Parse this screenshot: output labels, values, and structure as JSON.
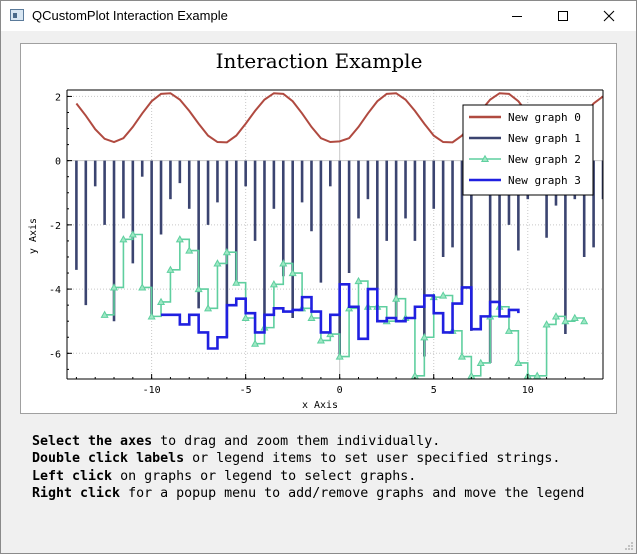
{
  "window": {
    "title": "QCustomPlot Interaction Example",
    "minimize_icon": "minimize-icon",
    "maximize_icon": "maximize-icon",
    "close_icon": "close-icon"
  },
  "plot": {
    "title": "Interaction Example",
    "xlabel": "x Axis",
    "ylabel": "y Axis",
    "xticks": [
      "-10",
      "-5",
      "0",
      "5",
      "10"
    ],
    "yticks": [
      "2",
      "0",
      "-2",
      "-4",
      "-6"
    ]
  },
  "chart_data": {
    "type": "line",
    "title": "Interaction Example",
    "xlabel": "x Axis",
    "ylabel": "y Axis",
    "xlim": [
      -14.5,
      14.0
    ],
    "ylim": [
      -6.8,
      2.2
    ],
    "grid": true,
    "legend_position": "top-right",
    "series": [
      {
        "name": "New graph 0",
        "style": "line",
        "color": "#b04a40",
        "x": [
          -14.0,
          -13.5,
          -13.0,
          -12.5,
          -12.0,
          -11.5,
          -11.0,
          -10.5,
          -10.0,
          -9.5,
          -9.0,
          -8.5,
          -8.0,
          -7.5,
          -7.0,
          -6.5,
          -6.0,
          -5.5,
          -5.0,
          -4.5,
          -4.0,
          -3.5,
          -3.0,
          -2.5,
          -2.0,
          -1.5,
          -1.0,
          -0.5,
          0.0,
          0.5,
          1.0,
          1.5,
          2.0,
          2.5,
          3.0,
          3.5,
          4.0,
          4.5,
          5.0,
          5.5,
          6.0,
          6.5,
          7.0,
          7.5,
          8.0,
          8.5,
          9.0,
          9.5,
          10.0,
          10.5,
          11.0,
          11.5,
          12.0,
          12.5,
          13.0,
          13.5,
          14.0
        ],
        "y": [
          1.78,
          1.4,
          0.98,
          0.68,
          0.58,
          0.7,
          1.05,
          1.47,
          1.85,
          2.08,
          2.1,
          1.9,
          1.55,
          1.15,
          0.78,
          0.58,
          0.57,
          0.78,
          1.15,
          1.55,
          1.9,
          2.1,
          2.08,
          1.85,
          1.47,
          1.05,
          0.7,
          0.58,
          0.6,
          0.7,
          1.05,
          1.47,
          1.85,
          2.08,
          2.1,
          1.9,
          1.55,
          1.15,
          0.78,
          0.58,
          0.57,
          0.78,
          1.15,
          1.55,
          1.9,
          2.1,
          2.08,
          1.85,
          1.47,
          1.05,
          0.7,
          0.58,
          0.68,
          0.98,
          1.4,
          1.78,
          2.0
        ]
      },
      {
        "name": "New graph 1",
        "style": "impulse",
        "color": "#3b4470",
        "x": [
          -14.0,
          -13.5,
          -13.0,
          -12.5,
          -12.0,
          -11.5,
          -11.0,
          -10.5,
          -10.0,
          -9.5,
          -9.0,
          -8.5,
          -8.0,
          -7.5,
          -7.0,
          -6.5,
          -6.0,
          -5.5,
          -5.0,
          -4.5,
          -4.0,
          -3.5,
          -3.0,
          -2.5,
          -2.0,
          -1.5,
          -1.0,
          -0.5,
          0.0,
          0.5,
          1.0,
          1.5,
          2.0,
          2.5,
          3.0,
          3.5,
          4.0,
          4.5,
          5.0,
          5.5,
          6.0,
          6.5,
          7.0,
          7.5,
          8.0,
          8.5,
          9.0,
          9.5,
          10.0,
          10.5,
          11.0,
          11.5,
          12.0,
          12.5,
          13.0,
          13.5,
          14.0
        ],
        "y": [
          -3.4,
          -4.5,
          -0.8,
          -2.0,
          -5.0,
          -1.8,
          -3.2,
          -0.5,
          -4.8,
          -2.3,
          -1.2,
          -0.7,
          -1.5,
          -4.6,
          -2.0,
          -1.3,
          -5.5,
          -3.8,
          -0.8,
          -2.5,
          -5.2,
          -1.5,
          -3.6,
          -4.9,
          -1.3,
          -2.2,
          -3.8,
          -0.8,
          -6.1,
          -3.5,
          -1.8,
          -1.2,
          -4.0,
          -2.5,
          -5.0,
          -1.8,
          -2.5,
          -6.1,
          -1.5,
          -3.0,
          -2.7,
          -4.4,
          -5.3,
          -1.0,
          -6.3,
          -4.5,
          -2.0,
          -2.8,
          -1.2,
          -0.9,
          -2.4,
          -1.4,
          -5.4,
          -1.2,
          -3.0,
          -2.7,
          -1.2
        ]
      },
      {
        "name": "New graph 2",
        "style": "step-left-triangles",
        "color": "#5fcf9f",
        "x": [
          -12.5,
          -12.0,
          -11.5,
          -11.0,
          -10.5,
          -10.0,
          -9.5,
          -9.0,
          -8.5,
          -8.0,
          -7.5,
          -7.0,
          -6.5,
          -6.0,
          -5.5,
          -5.0,
          -4.5,
          -4.0,
          -3.5,
          -3.0,
          -2.5,
          -2.0,
          -1.5,
          -1.0,
          -0.5,
          0.0,
          0.5,
          1.0,
          1.5,
          2.0,
          2.5,
          3.0,
          3.5,
          4.0,
          4.5,
          5.0,
          5.5,
          6.0,
          6.5,
          7.0,
          7.5,
          8.0,
          8.5,
          9.0,
          9.5,
          10.0,
          10.5,
          11.0,
          11.5,
          12.0,
          12.5,
          13.0
        ],
        "y": [
          -4.8,
          -3.95,
          -2.45,
          -2.3,
          -3.95,
          -4.85,
          -4.4,
          -3.4,
          -2.45,
          -2.8,
          -4.0,
          -4.6,
          -3.2,
          -2.85,
          -3.8,
          -4.9,
          -5.7,
          -5.2,
          -3.85,
          -3.2,
          -3.5,
          -4.6,
          -4.9,
          -5.6,
          -5.4,
          -6.1,
          -4.6,
          -3.75,
          -4.55,
          -4.55,
          -5.0,
          -4.3,
          -4.9,
          -6.7,
          -5.5,
          -4.25,
          -4.2,
          -5.3,
          -6.1,
          -6.7,
          -6.3,
          -4.85,
          -4.55,
          -5.3,
          -6.3,
          -6.7,
          -6.7,
          -5.1,
          -4.85,
          -5.0,
          -4.9,
          -5.0
        ]
      },
      {
        "name": "New graph 3",
        "style": "step-left",
        "color": "#2020e0",
        "x": [
          -9.5,
          -9.0,
          -8.5,
          -8.0,
          -7.5,
          -7.0,
          -6.5,
          -6.0,
          -5.5,
          -5.0,
          -4.5,
          -4.0,
          -3.5,
          -3.0,
          -2.5,
          -2.0,
          -1.5,
          -1.0,
          -0.5,
          0.0,
          0.5,
          1.0,
          1.5,
          2.0,
          2.5,
          3.0,
          3.5,
          4.0,
          4.5,
          5.0,
          5.5,
          6.0,
          6.5,
          7.0,
          7.5,
          8.0,
          8.5,
          9.0,
          9.5
        ],
        "y": [
          -4.8,
          -4.8,
          -5.1,
          -4.8,
          -5.35,
          -5.85,
          -5.5,
          -4.5,
          -4.3,
          -4.75,
          -5.35,
          -4.8,
          -4.6,
          -4.7,
          -4.65,
          -4.25,
          -4.7,
          -5.35,
          -4.8,
          -3.85,
          -4.55,
          -5.55,
          -4.0,
          -5.0,
          -4.9,
          -5.0,
          -4.9,
          -4.55,
          -4.2,
          -4.75,
          -5.35,
          -4.45,
          -3.95,
          -5.25,
          -4.85,
          -4.4,
          -4.85,
          -4.65,
          -4.75
        ]
      }
    ]
  },
  "instructions": {
    "line1_bold": "Select the axes",
    "line1_rest": " to drag and zoom them individually.",
    "line2_bold": "Double click labels",
    "line2_rest": " or legend items to set user specified strings.",
    "line3_bold": "Left click",
    "line3_rest": " on graphs or legend to select graphs.",
    "line4_bold": "Right click",
    "line4_rest": " for a popup menu to add/remove graphs and move the legend"
  }
}
